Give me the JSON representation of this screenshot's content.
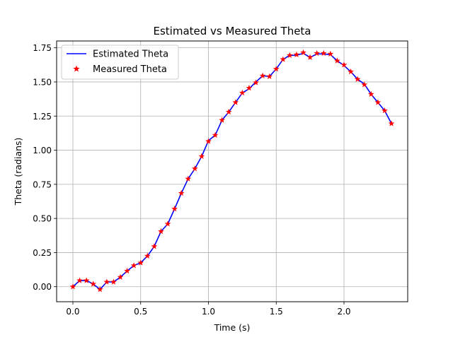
{
  "chart_data": {
    "type": "line",
    "title": "Estimated vs Measured Theta",
    "xlabel": "Time (s)",
    "ylabel": "Theta (radians)",
    "xlim": [
      -0.12,
      2.47
    ],
    "ylim": [
      -0.11,
      1.8
    ],
    "xticks": [
      0.0,
      0.5,
      1.0,
      1.5,
      2.0
    ],
    "xtick_labels": [
      "0.0",
      "0.5",
      "1.0",
      "1.5",
      "2.0"
    ],
    "yticks": [
      0.0,
      0.25,
      0.5,
      0.75,
      1.0,
      1.25,
      1.5,
      1.75
    ],
    "ytick_labels": [
      "0.00",
      "0.25",
      "0.50",
      "0.75",
      "1.00",
      "1.25",
      "1.50",
      "1.75"
    ],
    "grid": true,
    "legend_position": "top-left",
    "x": [
      0.0,
      0.05,
      0.1,
      0.15,
      0.2,
      0.25,
      0.3,
      0.35,
      0.4,
      0.45,
      0.5,
      0.55,
      0.6,
      0.65,
      0.7,
      0.75,
      0.8,
      0.85,
      0.9,
      0.95,
      1.0,
      1.05,
      1.1,
      1.15,
      1.2,
      1.25,
      1.3,
      1.35,
      1.4,
      1.45,
      1.5,
      1.55,
      1.6,
      1.65,
      1.7,
      1.75,
      1.8,
      1.85,
      1.9,
      1.95,
      2.0,
      2.05,
      2.1,
      2.15,
      2.2,
      2.25,
      2.3,
      2.35
    ],
    "series": [
      {
        "name": "Estimated Theta",
        "style": "line",
        "color": "#0000ff",
        "values": [
          0.0,
          0.045,
          0.045,
          0.02,
          -0.02,
          0.035,
          0.035,
          0.07,
          0.115,
          0.155,
          0.175,
          0.225,
          0.295,
          0.405,
          0.46,
          0.57,
          0.685,
          0.79,
          0.865,
          0.955,
          1.07,
          1.11,
          1.22,
          1.28,
          1.35,
          1.42,
          1.45,
          1.5,
          1.545,
          1.54,
          1.595,
          1.665,
          1.695,
          1.695,
          1.71,
          1.68,
          1.705,
          1.705,
          1.7,
          1.655,
          1.62,
          1.575,
          1.52,
          1.485,
          1.41,
          1.35,
          1.29,
          1.195
        ]
      },
      {
        "name": "Measured Theta",
        "style": "scatter",
        "marker": "star",
        "color": "#ff0000",
        "values": [
          0.0,
          0.045,
          0.045,
          0.02,
          -0.02,
          0.035,
          0.035,
          0.07,
          0.115,
          0.155,
          0.175,
          0.225,
          0.295,
          0.405,
          0.46,
          0.57,
          0.685,
          0.79,
          0.865,
          0.955,
          1.065,
          1.11,
          1.22,
          1.28,
          1.35,
          1.42,
          1.455,
          1.495,
          1.545,
          1.54,
          1.595,
          1.665,
          1.695,
          1.7,
          1.715,
          1.68,
          1.71,
          1.71,
          1.705,
          1.655,
          1.625,
          1.575,
          1.52,
          1.48,
          1.41,
          1.35,
          1.29,
          1.195
        ]
      }
    ]
  }
}
